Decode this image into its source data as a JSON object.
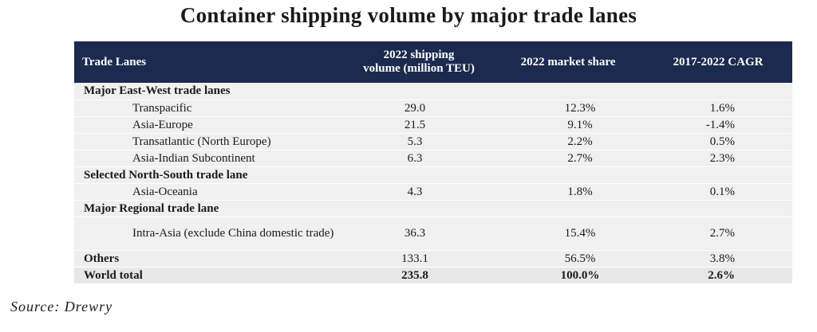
{
  "title": "Container shipping volume by major trade lanes",
  "headers": {
    "lane": "Trade Lanes",
    "volume_line1": "2022 shipping",
    "volume_line2": "volume (million TEU)",
    "share": "2022 market share",
    "cagr": "2017-2022 CAGR"
  },
  "sections": [
    {
      "label": "Major East-West trade lanes",
      "rows": [
        {
          "lane": "Transpacific",
          "volume": "29.0",
          "share": "12.3%",
          "cagr": "1.6%"
        },
        {
          "lane": "Asia-Europe",
          "volume": "21.5",
          "share": "9.1%",
          "cagr": "-1.4%"
        },
        {
          "lane": "Transatlantic (North Europe)",
          "volume": "5.3",
          "share": "2.2%",
          "cagr": "0.5%"
        },
        {
          "lane": "Asia-Indian Subcontinent",
          "volume": "6.3",
          "share": "2.7%",
          "cagr": "2.3%"
        }
      ]
    },
    {
      "label": "Selected North-South trade lane",
      "rows": [
        {
          "lane": "Asia-Oceania",
          "volume": "4.3",
          "share": "1.8%",
          "cagr": "0.1%"
        }
      ]
    },
    {
      "label": "Major Regional trade lane",
      "rows": [
        {
          "lane": "Intra-Asia (exclude China domestic trade)",
          "volume": "36.3",
          "share": "15.4%",
          "cagr": "2.7%"
        }
      ]
    }
  ],
  "others": {
    "lane": "Others",
    "volume": "133.1",
    "share": "56.5%",
    "cagr": "3.8%"
  },
  "total": {
    "lane": "World total",
    "volume": "235.8",
    "share": "100.0%",
    "cagr": "2.6%"
  },
  "source": "Source: Drewry",
  "colors": {
    "header_bg": "#1b2a4e",
    "header_text": "#ffffff",
    "row_bg": "#f0f0f0"
  }
}
